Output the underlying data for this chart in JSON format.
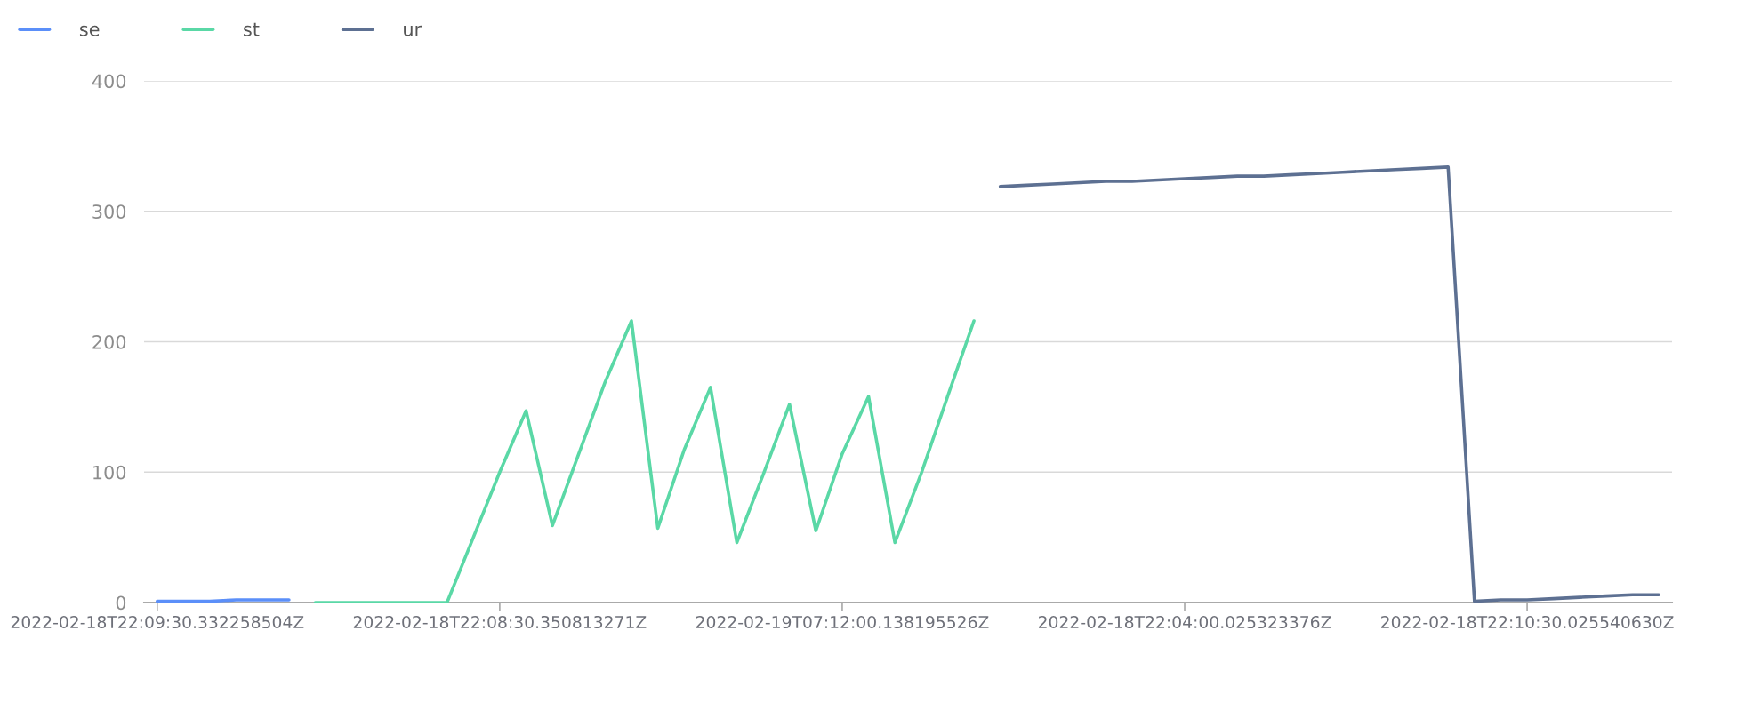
{
  "chart_data": {
    "type": "line",
    "categories": [
      "2022-02-18T22:09:30.332258504Z",
      null,
      null,
      null,
      null,
      null,
      null,
      null,
      null,
      null,
      null,
      null,
      null,
      "2022-02-18T22:08:30.350813271Z",
      null,
      null,
      null,
      null,
      null,
      null,
      null,
      null,
      null,
      null,
      null,
      null,
      "2022-02-19T07:12:00.138195526Z",
      null,
      null,
      null,
      null,
      null,
      null,
      null,
      null,
      null,
      null,
      null,
      null,
      "2022-02-18T22:04:00.025323376Z",
      null,
      null,
      null,
      null,
      null,
      null,
      null,
      null,
      null,
      null,
      null,
      null,
      "2022-02-18T22:10:30.025540630Z",
      null,
      null,
      null,
      null,
      null
    ],
    "series": [
      {
        "name": "se",
        "color": "#5b8ff9",
        "values": [
          1,
          1,
          1,
          2,
          2,
          2,
          null,
          null,
          null,
          null,
          null,
          null,
          null,
          null,
          null,
          null,
          null,
          null,
          null,
          null,
          null,
          null,
          null,
          null,
          null,
          null,
          null,
          null,
          null,
          null,
          null,
          null,
          null,
          null,
          null,
          null,
          null,
          null,
          null,
          null,
          null,
          null,
          null,
          null,
          null,
          null,
          null,
          null,
          null,
          null,
          null,
          null,
          null,
          null,
          null,
          null,
          null,
          null
        ]
      },
      {
        "name": "st",
        "color": "#5ad8a6",
        "values": [
          null,
          null,
          null,
          null,
          null,
          null,
          0,
          0,
          0,
          0,
          0,
          0,
          50,
          100,
          147,
          59,
          114,
          169,
          216,
          57,
          117,
          165,
          46,
          98,
          152,
          55,
          114,
          158,
          46,
          99,
          158,
          216,
          null,
          null,
          null,
          null,
          null,
          null,
          null,
          null,
          null,
          null,
          null,
          null,
          null,
          null,
          null,
          null,
          null,
          null,
          null,
          null,
          null,
          null,
          null,
          null,
          null,
          null
        ]
      },
      {
        "name": "ur",
        "color": "#5d7092",
        "values": [
          null,
          null,
          null,
          null,
          null,
          null,
          null,
          null,
          null,
          null,
          null,
          null,
          null,
          null,
          null,
          null,
          null,
          null,
          null,
          null,
          null,
          null,
          null,
          null,
          null,
          null,
          null,
          null,
          null,
          null,
          null,
          null,
          319,
          320,
          321,
          322,
          323,
          323,
          324,
          325,
          326,
          327,
          327,
          328,
          329,
          330,
          331,
          332,
          333,
          334,
          1,
          2,
          2,
          3,
          4,
          5,
          6,
          6
        ]
      }
    ],
    "ylim": [
      0,
      400
    ],
    "yticks": [
      0,
      100,
      200,
      300,
      400
    ],
    "grid": "y",
    "legend": "top left",
    "line_style": "solid",
    "marker": "none"
  }
}
